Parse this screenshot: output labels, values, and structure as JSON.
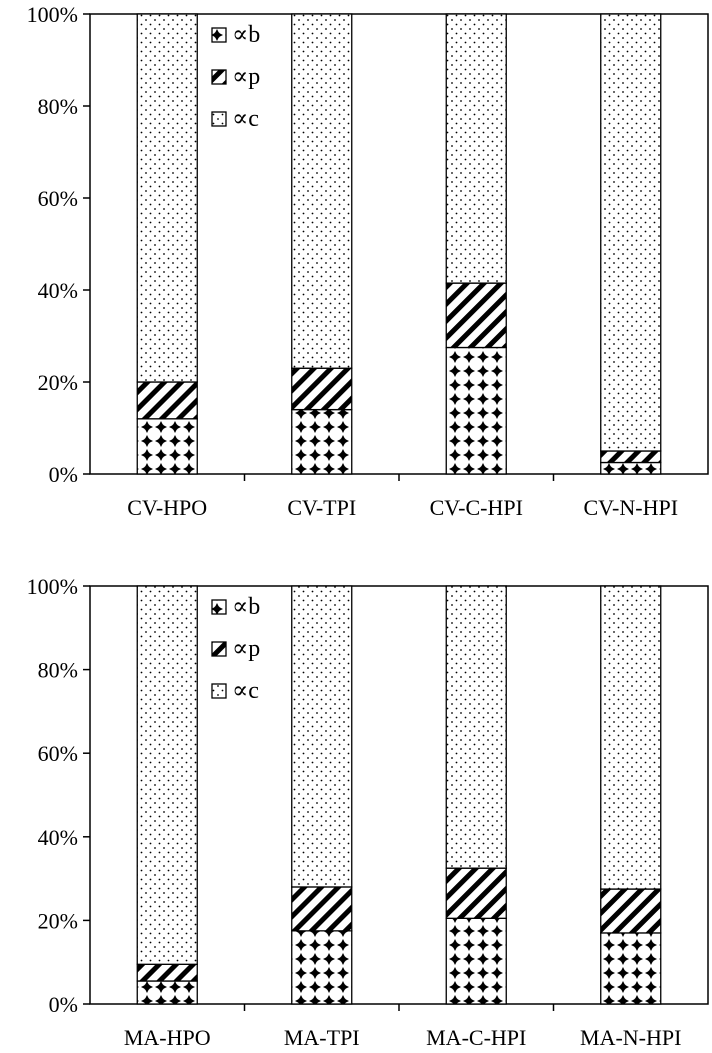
{
  "chart_data": [
    {
      "type": "bar",
      "stacked": true,
      "percent": true,
      "categories": [
        "CV-HPO",
        "CV-TPI",
        "CV-C-HPI",
        "CV-N-HPI"
      ],
      "series": [
        {
          "name": "∝b",
          "values": [
            12,
            14,
            27.5,
            2.5
          ]
        },
        {
          "name": "∝p",
          "values": [
            8,
            9,
            14,
            2.5
          ]
        },
        {
          "name": "∝c",
          "values": [
            80,
            77,
            58.5,
            95
          ]
        }
      ],
      "y_ticks": [
        "0%",
        "20%",
        "40%",
        "60%",
        "80%",
        "100%"
      ],
      "ylim": [
        0,
        100
      ],
      "legend_position": "top-center",
      "grid": false
    },
    {
      "type": "bar",
      "stacked": true,
      "percent": true,
      "categories": [
        "MA-HPO",
        "MA-TPI",
        "MA-C-HPI",
        "MA-N-HPI"
      ],
      "series": [
        {
          "name": "∝b",
          "values": [
            5.5,
            17.5,
            20.5,
            17
          ]
        },
        {
          "name": "∝p",
          "values": [
            4,
            10.5,
            12,
            10.5
          ]
        },
        {
          "name": "∝c",
          "values": [
            90.5,
            72,
            67.5,
            72.5
          ]
        }
      ],
      "y_ticks": [
        "0%",
        "20%",
        "40%",
        "60%",
        "80%",
        "100%"
      ],
      "ylim": [
        0,
        100
      ],
      "legend_position": "top-center",
      "grid": false
    }
  ]
}
